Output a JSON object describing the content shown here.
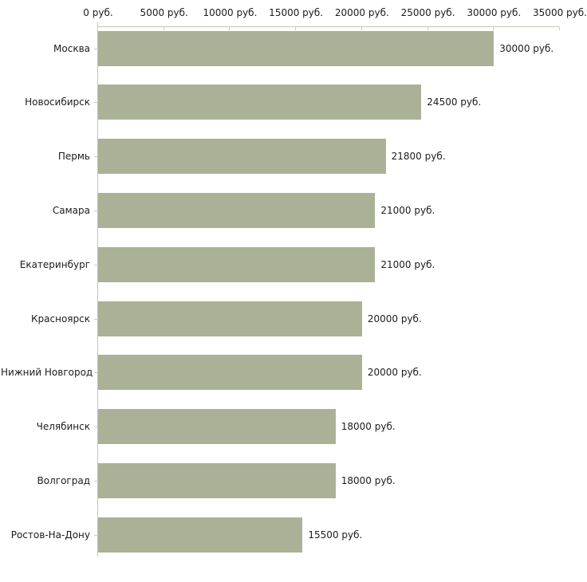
{
  "chart_data": {
    "type": "bar",
    "orientation": "horizontal",
    "title": "",
    "xlabel": "",
    "ylabel": "",
    "categories": [
      "Москва",
      "Новосибирск",
      "Пермь",
      "Самара",
      "Екатеринбург",
      "Красноярск",
      "Нижний Новгород",
      "Челябинск",
      "Волгоград",
      "Ростов-На-Дону"
    ],
    "values": [
      30000,
      24500,
      21800,
      21000,
      21000,
      20000,
      20000,
      18000,
      18000,
      15500
    ],
    "value_labels": [
      "30000 руб.",
      "24500 руб.",
      "21800 руб.",
      "21000 руб.",
      "21000 руб.",
      "20000 руб.",
      "20000 руб.",
      "18000 руб.",
      "18000 руб.",
      "15500 руб."
    ],
    "x_tick_values": [
      0,
      5000,
      10000,
      15000,
      20000,
      25000,
      30000,
      35000
    ],
    "x_tick_labels": [
      "0 руб.",
      "5000 руб.",
      "10000 руб.",
      "15000 руб.",
      "20000 руб.",
      "25000 руб.",
      "30000 руб.",
      "35000 руб."
    ],
    "xlim": [
      0,
      35000
    ],
    "grid": false,
    "legend": null,
    "bar_color": "#aab196",
    "axis_line_color": "#c6c6b6",
    "tick_color": "#ccccb3",
    "text_color": "#1c1c1c"
  }
}
